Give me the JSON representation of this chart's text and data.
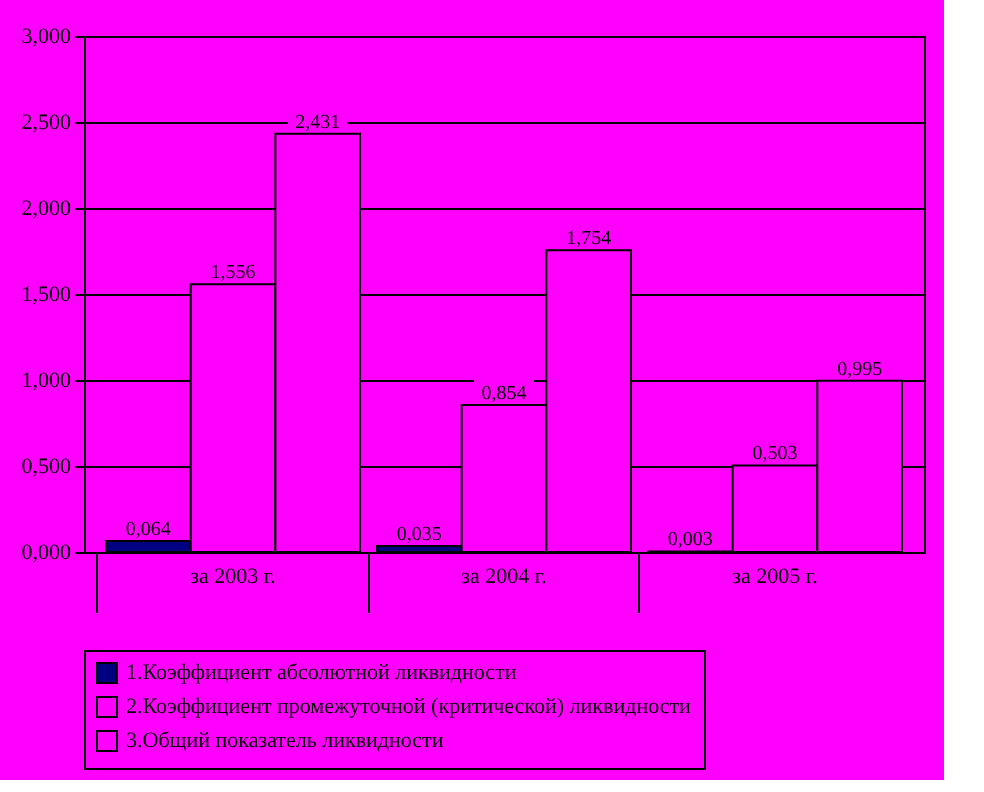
{
  "chart_data": {
    "type": "bar",
    "categories": [
      "за 2003 г.",
      "за 2004 г.",
      "за 2005 г."
    ],
    "series": [
      {
        "name": "1.Коэффициент абсолютной ликвидности",
        "color": "#000080",
        "values": [
          0.064,
          0.035,
          0.003
        ],
        "value_labels": [
          "0,064",
          "0,035",
          "0,003"
        ]
      },
      {
        "name": "2.Коэффициент промежуточной (критической) ликвидности",
        "color": "#ff00ff",
        "values": [
          1.556,
          0.854,
          0.503
        ],
        "value_labels": [
          "1,556",
          "0,854",
          "0,503"
        ]
      },
      {
        "name": "3.Общий показатель ликвидности",
        "color": "#ff00ff",
        "values": [
          2.431,
          1.754,
          0.995
        ],
        "value_labels": [
          "2,431",
          "1,754",
          "0,995"
        ]
      }
    ],
    "ylim": [
      0,
      3
    ],
    "yticks": [
      {
        "value": 0,
        "label": "0,000"
      },
      {
        "value": 0.5,
        "label": "0,500"
      },
      {
        "value": 1,
        "label": "1,000"
      },
      {
        "value": 1.5,
        "label": "1,500"
      },
      {
        "value": 2,
        "label": "2,000"
      },
      {
        "value": 2.5,
        "label": "2,500"
      },
      {
        "value": 3,
        "label": "3,000"
      }
    ],
    "grid": "y",
    "legend": "bottom"
  }
}
